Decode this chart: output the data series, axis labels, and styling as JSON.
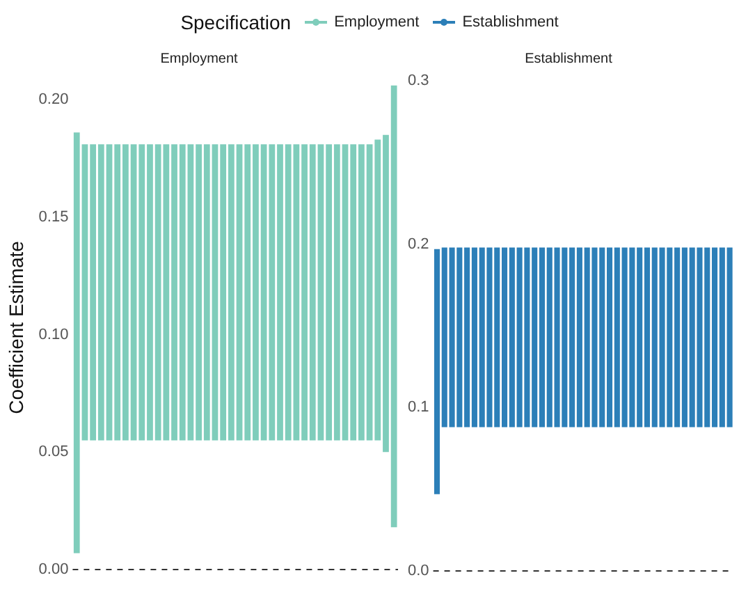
{
  "chart_data": [
    {
      "type": "bar",
      "title": "Employment",
      "ylabel": "Coefficient Estimate",
      "legend_title": "Specification",
      "legend": "top",
      "grid": false,
      "tick_labels": "y",
      "categories": [
        null,
        null,
        null,
        null,
        null,
        null,
        null,
        null,
        null,
        null,
        null,
        null,
        null,
        null,
        null,
        null,
        null,
        null,
        null,
        null,
        null,
        null,
        null,
        null,
        null,
        null,
        null,
        null,
        null,
        null,
        null,
        null,
        null,
        null,
        null,
        null,
        null,
        null,
        null,
        null
      ],
      "series": [
        {
          "name": "Employment",
          "color": "#7fcdbb",
          "base": [
            0.007,
            0.055,
            0.055,
            0.055,
            0.055,
            0.055,
            0.055,
            0.055,
            0.055,
            0.055,
            0.055,
            0.055,
            0.055,
            0.055,
            0.055,
            0.055,
            0.055,
            0.055,
            0.055,
            0.055,
            0.055,
            0.055,
            0.055,
            0.055,
            0.055,
            0.055,
            0.055,
            0.055,
            0.055,
            0.055,
            0.055,
            0.055,
            0.055,
            0.055,
            0.055,
            0.055,
            0.055,
            0.055,
            0.05,
            0.018
          ],
          "values": [
            0.179,
            0.126,
            0.126,
            0.126,
            0.126,
            0.126,
            0.126,
            0.126,
            0.126,
            0.126,
            0.126,
            0.126,
            0.126,
            0.126,
            0.126,
            0.126,
            0.126,
            0.126,
            0.126,
            0.126,
            0.126,
            0.126,
            0.126,
            0.126,
            0.126,
            0.126,
            0.126,
            0.126,
            0.126,
            0.126,
            0.126,
            0.126,
            0.126,
            0.126,
            0.126,
            0.126,
            0.126,
            0.128,
            0.135,
            0.188
          ]
        }
      ],
      "ylim": [
        -0.002,
        0.208
      ],
      "yticks": [
        {
          "value": 0,
          "label": "0.00"
        },
        {
          "value": 0.05,
          "label": "0.05"
        },
        {
          "value": 0.1,
          "label": "0.10"
        },
        {
          "value": 0.15,
          "label": "0.15"
        },
        {
          "value": 0.2,
          "label": "0.20"
        }
      ],
      "ref_lines": [
        {
          "axis": "y",
          "value": 0,
          "line_style": "dashed",
          "color": "#333333"
        }
      ]
    },
    {
      "type": "bar",
      "title": "Establishment",
      "legend": "top",
      "grid": false,
      "tick_labels": "y",
      "categories": [
        null,
        null,
        null,
        null,
        null,
        null,
        null,
        null,
        null,
        null,
        null,
        null,
        null,
        null,
        null,
        null,
        null,
        null,
        null,
        null,
        null,
        null,
        null,
        null,
        null,
        null,
        null,
        null,
        null,
        null,
        null,
        null,
        null,
        null,
        null,
        null,
        null,
        null,
        null,
        null
      ],
      "series": [
        {
          "name": "Establishment",
          "color": "#2c7fb8",
          "base": [
            0.047,
            0.088,
            0.088,
            0.088,
            0.088,
            0.088,
            0.088,
            0.088,
            0.088,
            0.088,
            0.088,
            0.088,
            0.088,
            0.088,
            0.088,
            0.088,
            0.088,
            0.088,
            0.088,
            0.088,
            0.088,
            0.088,
            0.088,
            0.088,
            0.088,
            0.088,
            0.088,
            0.088,
            0.088,
            0.088,
            0.088,
            0.088,
            0.088,
            0.088,
            0.088,
            0.088,
            0.088,
            0.088,
            0.088,
            0.088
          ],
          "values": [
            0.15,
            0.11,
            0.11,
            0.11,
            0.11,
            0.11,
            0.11,
            0.11,
            0.11,
            0.11,
            0.11,
            0.11,
            0.11,
            0.11,
            0.11,
            0.11,
            0.11,
            0.11,
            0.11,
            0.11,
            0.11,
            0.11,
            0.11,
            0.11,
            0.11,
            0.11,
            0.11,
            0.11,
            0.11,
            0.11,
            0.11,
            0.11,
            0.11,
            0.11,
            0.11,
            0.11,
            0.11,
            0.11,
            0.11,
            0.11
          ]
        }
      ],
      "ylim": [
        -0.002,
        0.3
      ],
      "yticks": [
        {
          "value": 0,
          "label": "0.0"
        },
        {
          "value": 0.1,
          "label": "0.1"
        },
        {
          "value": 0.2,
          "label": "0.2"
        },
        {
          "value": 0.3,
          "label": "0.3"
        }
      ],
      "ref_lines": [
        {
          "axis": "y",
          "value": 0,
          "line_style": "dashed",
          "color": "#333333"
        }
      ]
    }
  ]
}
